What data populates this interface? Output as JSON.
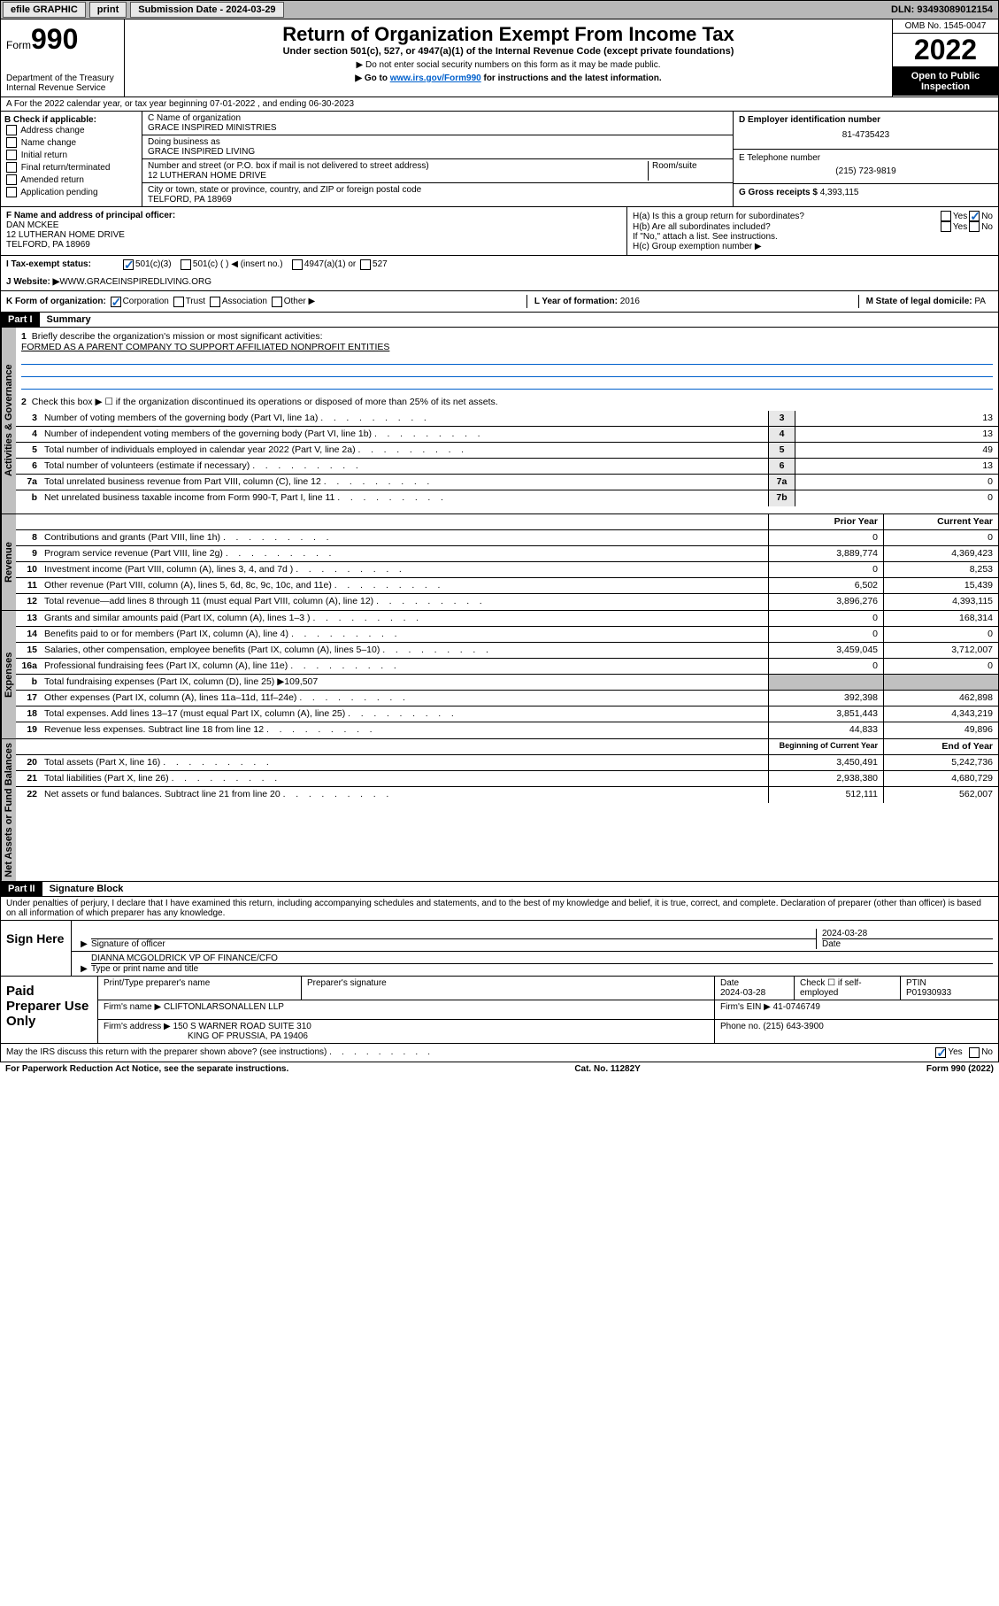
{
  "topbar": {
    "efile": "efile GRAPHIC",
    "print": "print",
    "sub_label": "Submission Date - ",
    "sub_date": "2024-03-29",
    "dln_label": "DLN: ",
    "dln": "93493089012154"
  },
  "header": {
    "form_word": "Form",
    "form_num": "990",
    "dept": "Department of the Treasury",
    "irs": "Internal Revenue Service",
    "title": "Return of Organization Exempt From Income Tax",
    "sub1": "Under section 501(c), 527, or 4947(a)(1) of the Internal Revenue Code (except private foundations)",
    "sub2": "▶ Do not enter social security numbers on this form as it may be made public.",
    "sub3_pre": "▶ Go to ",
    "sub3_link": "www.irs.gov/Form990",
    "sub3_post": " for instructions and the latest information.",
    "omb": "OMB No. 1545-0047",
    "year": "2022",
    "inspection": "Open to Public Inspection"
  },
  "row_a": "A For the 2022 calendar year, or tax year beginning 07-01-2022    , and ending 06-30-2023",
  "section_b": {
    "label": "B Check if applicable:",
    "opts": [
      "Address change",
      "Name change",
      "Initial return",
      "Final return/terminated",
      "Amended return",
      "Application pending"
    ]
  },
  "section_c": {
    "name_label": "C Name of organization",
    "name": "GRACE INSPIRED MINISTRIES",
    "dba_label": "Doing business as",
    "dba": "GRACE INSPIRED LIVING",
    "addr_label": "Number and street (or P.O. box if mail is not delivered to street address)",
    "room_label": "Room/suite",
    "addr": "12 LUTHERAN HOME DRIVE",
    "city_label": "City or town, state or province, country, and ZIP or foreign postal code",
    "city": "TELFORD, PA  18969"
  },
  "section_d": {
    "label": "D Employer identification number",
    "ein": "81-4735423"
  },
  "section_e": {
    "label": "E Telephone number",
    "phone": "(215) 723-9819"
  },
  "section_g": {
    "label": "G Gross receipts $ ",
    "val": "4,393,115"
  },
  "section_f": {
    "label": "F Name and address of principal officer:",
    "name": "DAN MCKEE",
    "addr": "12 LUTHERAN HOME DRIVE",
    "city": "TELFORD, PA  18969"
  },
  "section_h": {
    "ha": "H(a)  Is this a group return for subordinates?",
    "hb": "H(b)  Are all subordinates included?",
    "hb_note": "If \"No,\" attach a list. See instructions.",
    "hc": "H(c)  Group exemption number ▶",
    "yes": "Yes",
    "no": "No"
  },
  "section_i": {
    "label": "I Tax-exempt status:",
    "o1": "501(c)(3)",
    "o2": "501(c) (  ) ◀ (insert no.)",
    "o3": "4947(a)(1) or",
    "o4": "527"
  },
  "section_j": {
    "label": "J Website: ▶ ",
    "val": "WWW.GRACEINSPIREDLIVING.ORG"
  },
  "section_k": {
    "label": "K Form of organization:",
    "o1": "Corporation",
    "o2": "Trust",
    "o3": "Association",
    "o4": "Other ▶"
  },
  "section_l": {
    "label": "L Year of formation: ",
    "val": "2016"
  },
  "section_m": {
    "label": "M State of legal domicile: ",
    "val": "PA"
  },
  "part1": {
    "hdr": "Part I",
    "title": "Summary",
    "tabs": {
      "gov": "Activities & Governance",
      "rev": "Revenue",
      "exp": "Expenses",
      "net": "Net Assets or Fund Balances"
    },
    "l1": "Briefly describe the organization's mission or most significant activities:",
    "l1v": "FORMED AS A PARENT COMPANY TO SUPPORT AFFILIATED NONPROFIT ENTITIES",
    "l2": "Check this box ▶ ☐  if the organization discontinued its operations or disposed of more than 25% of its net assets.",
    "lines_gov": [
      {
        "n": "3",
        "d": "Number of voting members of the governing body (Part VI, line 1a)",
        "b": "3",
        "v": "13"
      },
      {
        "n": "4",
        "d": "Number of independent voting members of the governing body (Part VI, line 1b)",
        "b": "4",
        "v": "13"
      },
      {
        "n": "5",
        "d": "Total number of individuals employed in calendar year 2022 (Part V, line 2a)",
        "b": "5",
        "v": "49"
      },
      {
        "n": "6",
        "d": "Total number of volunteers (estimate if necessary)",
        "b": "6",
        "v": "13"
      },
      {
        "n": "7a",
        "d": "Total unrelated business revenue from Part VIII, column (C), line 12",
        "b": "7a",
        "v": "0"
      },
      {
        "n": "b",
        "d": "Net unrelated business taxable income from Form 990-T, Part I, line 11",
        "b": "7b",
        "v": "0"
      }
    ],
    "hdr_prior": "Prior Year",
    "hdr_current": "Current Year",
    "lines_rev": [
      {
        "n": "8",
        "d": "Contributions and grants (Part VIII, line 1h)",
        "p": "0",
        "c": "0"
      },
      {
        "n": "9",
        "d": "Program service revenue (Part VIII, line 2g)",
        "p": "3,889,774",
        "c": "4,369,423"
      },
      {
        "n": "10",
        "d": "Investment income (Part VIII, column (A), lines 3, 4, and 7d )",
        "p": "0",
        "c": "8,253"
      },
      {
        "n": "11",
        "d": "Other revenue (Part VIII, column (A), lines 5, 6d, 8c, 9c, 10c, and 11e)",
        "p": "6,502",
        "c": "15,439"
      },
      {
        "n": "12",
        "d": "Total revenue—add lines 8 through 11 (must equal Part VIII, column (A), line 12)",
        "p": "3,896,276",
        "c": "4,393,115"
      }
    ],
    "lines_exp": [
      {
        "n": "13",
        "d": "Grants and similar amounts paid (Part IX, column (A), lines 1–3 )",
        "p": "0",
        "c": "168,314"
      },
      {
        "n": "14",
        "d": "Benefits paid to or for members (Part IX, column (A), line 4)",
        "p": "0",
        "c": "0"
      },
      {
        "n": "15",
        "d": "Salaries, other compensation, employee benefits (Part IX, column (A), lines 5–10)",
        "p": "3,459,045",
        "c": "3,712,007"
      },
      {
        "n": "16a",
        "d": "Professional fundraising fees (Part IX, column (A), line 11e)",
        "p": "0",
        "c": "0"
      },
      {
        "n": "b",
        "d": "Total fundraising expenses (Part IX, column (D), line 25) ▶109,507",
        "p": "",
        "c": ""
      },
      {
        "n": "17",
        "d": "Other expenses (Part IX, column (A), lines 11a–11d, 11f–24e)",
        "p": "392,398",
        "c": "462,898"
      },
      {
        "n": "18",
        "d": "Total expenses. Add lines 13–17 (must equal Part IX, column (A), line 25)",
        "p": "3,851,443",
        "c": "4,343,219"
      },
      {
        "n": "19",
        "d": "Revenue less expenses. Subtract line 18 from line 12",
        "p": "44,833",
        "c": "49,896"
      }
    ],
    "hdr_begin": "Beginning of Current Year",
    "hdr_end": "End of Year",
    "lines_net": [
      {
        "n": "20",
        "d": "Total assets (Part X, line 16)",
        "p": "3,450,491",
        "c": "5,242,736"
      },
      {
        "n": "21",
        "d": "Total liabilities (Part X, line 26)",
        "p": "2,938,380",
        "c": "4,680,729"
      },
      {
        "n": "22",
        "d": "Net assets or fund balances. Subtract line 21 from line 20",
        "p": "512,111",
        "c": "562,007"
      }
    ]
  },
  "part2": {
    "hdr": "Part II",
    "title": "Signature Block",
    "declare": "Under penalties of perjury, I declare that I have examined this return, including accompanying schedules and statements, and to the best of my knowledge and belief, it is true, correct, and complete. Declaration of preparer (other than officer) is based on all information of which preparer has any knowledge.",
    "sign_here": "Sign Here",
    "sig_officer": "Signature of officer",
    "sig_date": "2024-03-28",
    "date_lbl": "Date",
    "officer_name": "DIANNA MCGOLDRICK VP OF FINANCE/CFO",
    "officer_lbl": "Type or print name and title",
    "paid": "Paid Preparer Use Only",
    "prep_name_lbl": "Print/Type preparer's name",
    "prep_sig_lbl": "Preparer's signature",
    "prep_date": "2024-03-28",
    "check_lbl": "Check ☐ if self-employed",
    "ptin_lbl": "PTIN",
    "ptin": "P01930933",
    "firm_name_lbl": "Firm's name    ▶ ",
    "firm_name": "CLIFTONLARSONALLEN LLP",
    "firm_ein_lbl": "Firm's EIN ▶ ",
    "firm_ein": "41-0746749",
    "firm_addr_lbl": "Firm's address ▶ ",
    "firm_addr1": "150 S WARNER ROAD SUITE 310",
    "firm_addr2": "KING OF PRUSSIA, PA  19406",
    "firm_phone_lbl": "Phone no. ",
    "firm_phone": "(215) 643-3900",
    "discuss": "May the IRS discuss this return with the preparer shown above? (see instructions)",
    "discuss_yes": "Yes",
    "discuss_no": "No"
  },
  "footer": {
    "l": "For Paperwork Reduction Act Notice, see the separate instructions.",
    "m": "Cat. No. 11282Y",
    "r": "Form 990 (2022)"
  }
}
